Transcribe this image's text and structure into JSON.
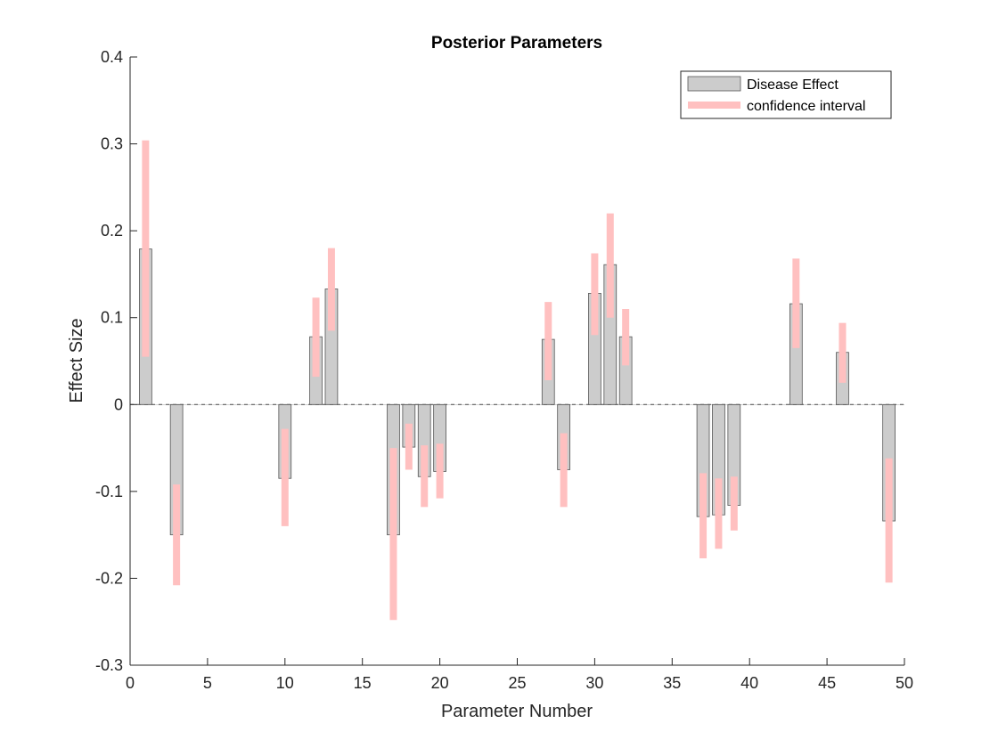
{
  "chart_data": {
    "type": "bar",
    "title": "Posterior Parameters",
    "xlabel": "Parameter Number",
    "ylabel": "Effect Size",
    "xlim": [
      0,
      50
    ],
    "ylim": [
      -0.3,
      0.4
    ],
    "xticks": [
      "0",
      "5",
      "10",
      "15",
      "20",
      "25",
      "30",
      "35",
      "40",
      "45",
      "50"
    ],
    "yticks": [
      "-0.3",
      "-0.2",
      "-0.1",
      "0",
      "0.1",
      "0.2",
      "0.3",
      "0.4"
    ],
    "grid": false,
    "legend_position": "top-right",
    "series": [
      {
        "name": "Disease Effect",
        "color": "#cccccc",
        "x": [
          1,
          3,
          10,
          12,
          13,
          17,
          18,
          19,
          20,
          27,
          28,
          30,
          31,
          32,
          37,
          38,
          39,
          43,
          46,
          49
        ],
        "values": [
          0.179,
          -0.15,
          -0.085,
          0.078,
          0.133,
          -0.15,
          -0.049,
          -0.083,
          -0.077,
          0.075,
          -0.075,
          0.128,
          0.161,
          0.078,
          -0.129,
          -0.127,
          -0.116,
          0.116,
          0.06,
          -0.134
        ]
      },
      {
        "name": "confidence interval",
        "color": "#ffc0c0",
        "x": [
          1,
          3,
          10,
          12,
          13,
          17,
          18,
          19,
          20,
          27,
          28,
          30,
          31,
          32,
          37,
          38,
          39,
          43,
          46,
          49
        ],
        "lower": [
          0.055,
          -0.208,
          -0.14,
          0.032,
          0.085,
          -0.248,
          -0.075,
          -0.118,
          -0.108,
          0.028,
          -0.118,
          0.08,
          0.1,
          0.045,
          -0.177,
          -0.166,
          -0.145,
          0.065,
          0.025,
          -0.205
        ],
        "upper": [
          0.304,
          -0.092,
          -0.028,
          0.123,
          0.18,
          -0.05,
          -0.022,
          -0.047,
          -0.045,
          0.118,
          -0.033,
          0.174,
          0.22,
          0.11,
          -0.079,
          -0.085,
          -0.083,
          0.168,
          0.094,
          -0.062
        ]
      }
    ]
  }
}
